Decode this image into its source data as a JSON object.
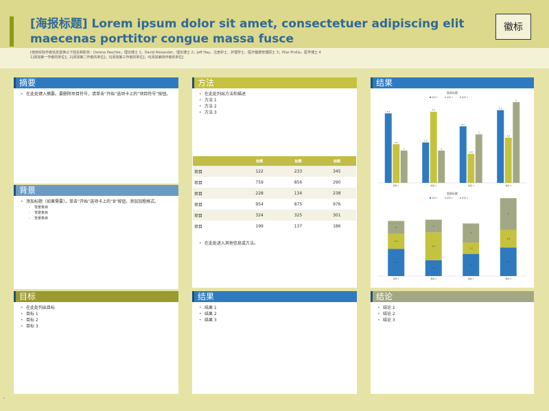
{
  "header": {
    "title": "[海报标题] Lorem ipsum dolor sit amet, consectetuer adipiscing elit maecenas porttitor congue massa fusce",
    "authors_line1": "[使用实际作者信息替换以下姓名和职务：Dorena Paschke，理论博士 1；David Alexander，理论博士 2；Jeff Hay，注册护士、护理学士、医疗健康管理硕士 3；Pilar Pinilla，医学博士 4",
    "authors_line2": "1]添加第一作者的单位]；2]添加第二作者的单位]；3]添加第三作者的单位]；4]添加第四作者的单位]",
    "logo": "徽标"
  },
  "colors": {
    "blue": "#2f7abf",
    "olive": "#c5c23f",
    "gray_green": "#a3a884",
    "dark_olive": "#9a9a2f"
  },
  "sections": {
    "abstract": {
      "heading": "摘要",
      "items": [
        "在此处键入摘要。要删除项目符号，请单击“开始”选项卡上的“项目符号”按钮。"
      ]
    },
    "background": {
      "heading": "背景",
      "items": [
        "添加标题（如果需要）。单击“开始”选项卡上的“B”按钮，添加加粗格式。"
      ],
      "sub_items": [
        "背景条目",
        "背景条目",
        "背景条目"
      ]
    },
    "goals": {
      "heading": "目标",
      "items": [
        "在此处列出目标",
        "目标 1",
        "目标 2",
        "目标 3"
      ]
    },
    "methods": {
      "heading": "方法",
      "items": [
        "在此处列出方法和描述",
        "方法 1",
        "方法 2",
        "方法 3"
      ],
      "note": "在此处进入其他信息或方法。"
    },
    "results_chart": {
      "heading": "结果"
    },
    "results": {
      "heading": "结果",
      "items": [
        "结果 1",
        "结果 2",
        "结果 3"
      ]
    },
    "conclusions": {
      "heading": "结论",
      "items": [
        "结论 1",
        "结论 2",
        "结论 3"
      ]
    }
  },
  "table": {
    "headers": [
      "",
      "标题",
      "标题",
      "标题"
    ],
    "rows": [
      [
        "项目",
        "122",
        "233",
        "345"
      ],
      [
        "项目",
        "759",
        "856",
        "290"
      ],
      [
        "项目",
        "228",
        "134",
        "238"
      ],
      [
        "项目",
        "954",
        "875",
        "976"
      ],
      [
        "项目",
        "324",
        "325",
        "301"
      ],
      [
        "项目",
        "199",
        "137",
        "186"
      ]
    ]
  },
  "chart_data": [
    {
      "type": "bar",
      "title": "图表标题",
      "categories": [
        "类别 1",
        "类别 2",
        "类别 3",
        "类别 4"
      ],
      "series": [
        {
          "name": "系列 1",
          "values": [
            4.3,
            2.5,
            3.5,
            4.5
          ],
          "color": "#2f7abf"
        },
        {
          "name": "系列 2",
          "values": [
            2.4,
            4.4,
            1.8,
            2.8
          ],
          "color": "#c5c23f"
        },
        {
          "name": "系列 3",
          "values": [
            2,
            2,
            3,
            5
          ],
          "color": "#a3a884"
        }
      ],
      "ylim": [
        0,
        5
      ],
      "legend": "top"
    },
    {
      "type": "bar",
      "stacked": true,
      "title": "图表标题",
      "categories": [
        "类别 1",
        "类别 2",
        "类别 3",
        "类别 4"
      ],
      "series": [
        {
          "name": "系列 1",
          "values": [
            4.3,
            2.5,
            3.5,
            4.5
          ],
          "color": "#2f7abf"
        },
        {
          "name": "系列 2",
          "values": [
            2.4,
            4.4,
            1.8,
            2.8
          ],
          "color": "#c5c23f"
        },
        {
          "name": "系列 3",
          "values": [
            2,
            2,
            3,
            5
          ],
          "color": "#a3a884"
        }
      ],
      "ylim": [
        0,
        12
      ],
      "legend": "top"
    }
  ]
}
